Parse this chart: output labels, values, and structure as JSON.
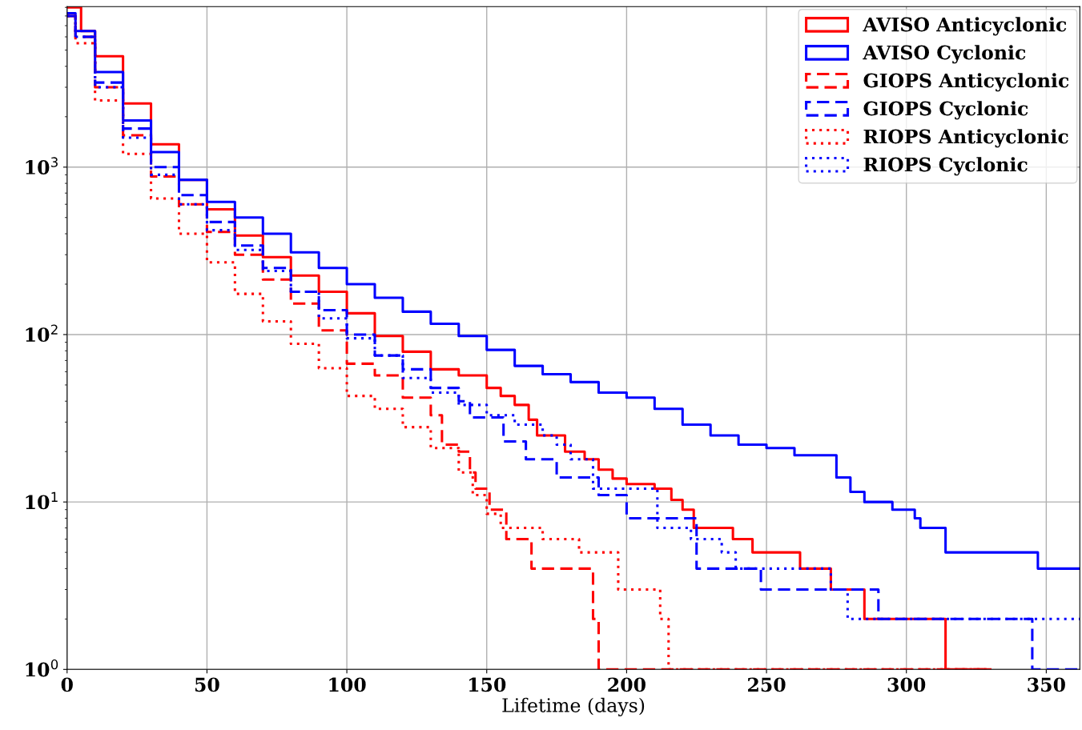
{
  "chart_data": {
    "type": "step",
    "xlabel": "Lifetime (days)",
    "xlim": [
      0,
      362
    ],
    "ylim": [
      1,
      9100
    ],
    "log": "y",
    "grid": true,
    "legend": "top right",
    "xticks": [
      0,
      50,
      100,
      150,
      200,
      250,
      300,
      350
    ],
    "yticks": [
      {
        "value": 1,
        "label": "10$^{0}$"
      },
      {
        "value": 10,
        "label": "10$^{1}$"
      },
      {
        "value": 100,
        "label": "10$^{2}$"
      },
      {
        "value": 1000,
        "label": "10$^{3}$"
      }
    ],
    "series": [
      {
        "name": "AVISO Anticyclonic",
        "color": "#ff0000",
        "line_style": "solid",
        "x": [
          0,
          5,
          10,
          20,
          30,
          40,
          50,
          60,
          70,
          80,
          90,
          100,
          110,
          120,
          130,
          140,
          150,
          155,
          160,
          165,
          168,
          178,
          185,
          190,
          195,
          200,
          210,
          216,
          220,
          224,
          238,
          245,
          262,
          273,
          285,
          314,
          330
        ],
        "values": [
          9000,
          6500,
          4600,
          2400,
          1370,
          840,
          560,
          390,
          290,
          225,
          180,
          134,
          98,
          79,
          62,
          57,
          48,
          43,
          38,
          31,
          25,
          20,
          18,
          15.6,
          13.8,
          12.8,
          12,
          10.3,
          9,
          7,
          6,
          5,
          4,
          3,
          2,
          1,
          1
        ]
      },
      {
        "name": "AVISO Cyclonic",
        "color": "#0000ff",
        "line_style": "solid",
        "x": [
          0,
          3,
          10,
          20,
          30,
          40,
          50,
          60,
          70,
          80,
          90,
          100,
          110,
          120,
          130,
          140,
          150,
          160,
          170,
          180,
          190,
          200,
          210,
          220,
          230,
          240,
          250,
          260,
          270,
          275,
          280,
          285,
          295,
          303,
          305,
          314,
          347,
          362
        ],
        "values": [
          8300,
          6500,
          3700,
          1900,
          1230,
          840,
          620,
          500,
          400,
          310,
          250,
          200,
          166,
          137,
          116,
          98,
          81,
          65,
          58,
          52,
          45,
          42,
          36,
          29,
          25,
          22,
          21,
          19,
          19,
          14,
          11.5,
          10,
          9,
          8,
          7,
          5,
          4,
          4
        ]
      },
      {
        "name": "GIOPS Anticyclonic",
        "color": "#ff0000",
        "line_style": "dashed",
        "x": [
          0,
          3,
          10,
          20,
          30,
          40,
          50,
          60,
          70,
          80,
          90,
          100,
          110,
          120,
          130,
          134,
          140,
          144,
          146,
          151,
          157,
          166,
          188,
          190,
          330
        ],
        "values": [
          8000,
          6000,
          3000,
          1550,
          880,
          600,
          410,
          300,
          213,
          153,
          106,
          67,
          57,
          42,
          33,
          22,
          20,
          15,
          12,
          9,
          6,
          4,
          2,
          1,
          1
        ]
      },
      {
        "name": "GIOPS Cyclonic",
        "color": "#0000ff",
        "line_style": "dashed",
        "x": [
          0,
          3,
          10,
          20,
          30,
          40,
          50,
          60,
          70,
          80,
          90,
          100,
          110,
          120,
          130,
          140,
          144,
          156,
          164,
          175,
          190,
          200,
          225,
          248,
          290,
          345,
          362
        ],
        "values": [
          8000,
          6000,
          3200,
          1700,
          1000,
          680,
          470,
          340,
          250,
          180,
          140,
          100,
          75,
          62,
          48,
          40,
          32,
          23,
          18,
          14,
          11,
          8,
          4,
          3,
          2,
          1,
          1
        ]
      },
      {
        "name": "RIOPS Anticyclonic",
        "color": "#ff0000",
        "line_style": "dotted",
        "x": [
          0,
          3,
          10,
          20,
          30,
          40,
          50,
          60,
          70,
          80,
          90,
          100,
          110,
          120,
          130,
          140,
          145,
          150,
          155,
          170,
          183,
          197,
          212,
          215,
          330
        ],
        "values": [
          8000,
          5500,
          2500,
          1200,
          650,
          400,
          270,
          175,
          120,
          88,
          63,
          43,
          36,
          28,
          21,
          15,
          11,
          8.5,
          7,
          6,
          5,
          3,
          2,
          1,
          1
        ]
      },
      {
        "name": "RIOPS Cyclonic",
        "color": "#0000ff",
        "line_style": "dotted",
        "x": [
          0,
          3,
          10,
          20,
          30,
          40,
          50,
          60,
          70,
          80,
          90,
          100,
          110,
          120,
          130,
          140,
          150,
          160,
          170,
          175,
          180,
          188,
          211,
          223,
          234,
          239,
          273,
          279,
          362
        ],
        "values": [
          8000,
          6000,
          3000,
          1500,
          900,
          600,
          420,
          320,
          240,
          180,
          125,
          95,
          75,
          55,
          45,
          38,
          33,
          29,
          25,
          22,
          18,
          12,
          7,
          6,
          5,
          4,
          3,
          2,
          2
        ]
      }
    ]
  }
}
